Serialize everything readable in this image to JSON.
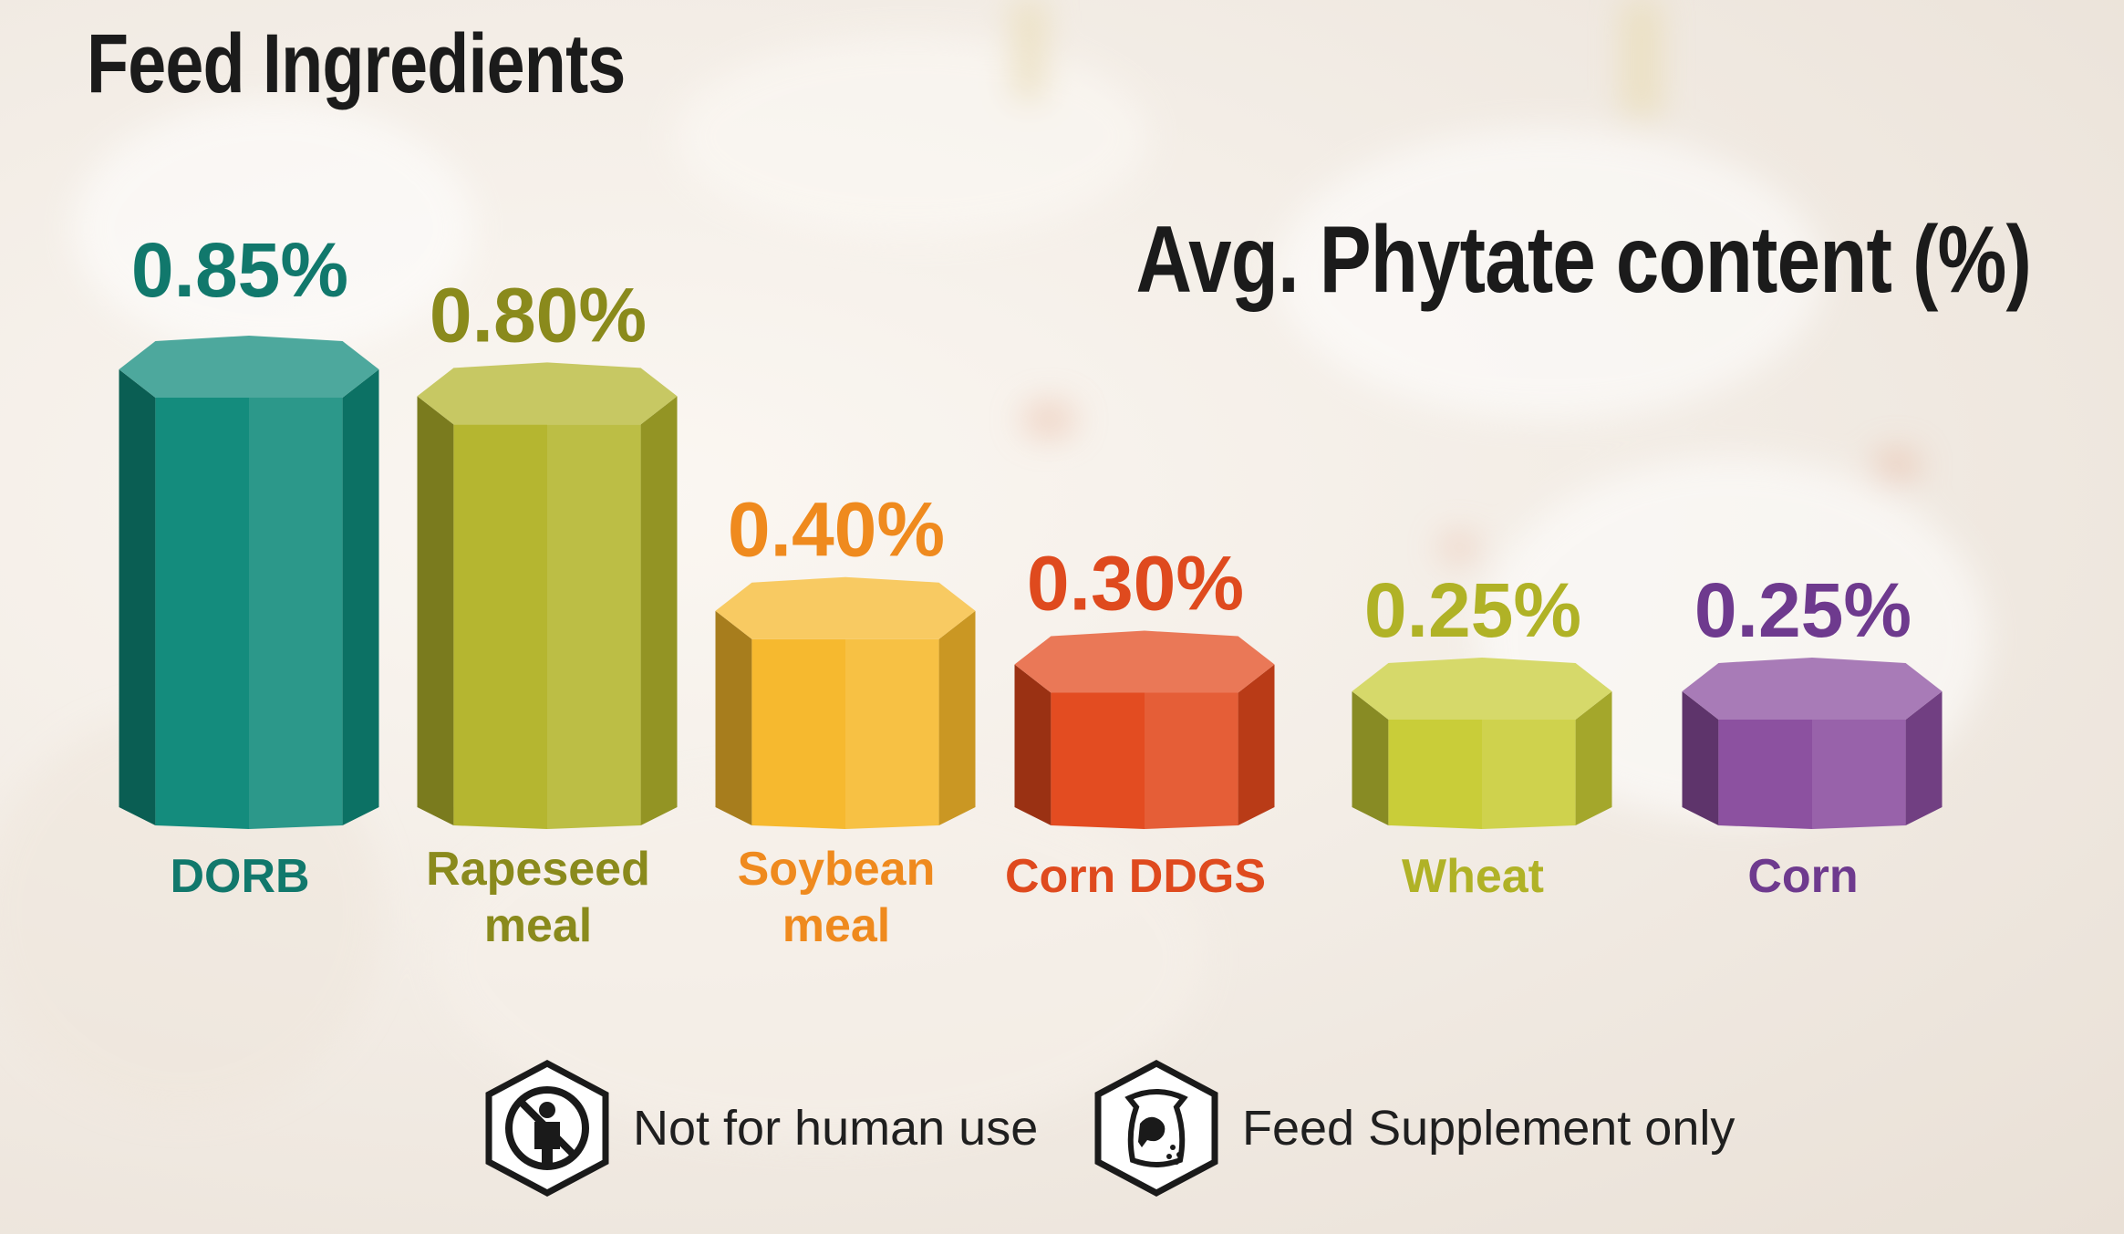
{
  "header": {
    "title": "Feed Ingredients",
    "subtitle": "Avg. Phytate content (%)"
  },
  "chart_data": {
    "type": "bar",
    "title": "Feed Ingredients",
    "ylabel": "Avg. Phytate content (%)",
    "ylim": [
      0,
      0.85
    ],
    "categories": [
      "DORB",
      "Rapeseed meal",
      "Soybean meal",
      "Corn DDGS",
      "Wheat",
      "Corn"
    ],
    "category_lines": [
      [
        "DORB"
      ],
      [
        "Rapeseed",
        "meal"
      ],
      [
        "Soybean",
        "meal"
      ],
      [
        "Corn DDGS"
      ],
      [
        "Wheat"
      ],
      [
        "Corn"
      ]
    ],
    "values": [
      0.85,
      0.8,
      0.4,
      0.3,
      0.25,
      0.25
    ],
    "value_labels": [
      "0.85%",
      "0.80%",
      "0.40%",
      "0.30%",
      "0.25%",
      "0.25%"
    ],
    "colors": [
      "#0f8a7a",
      "#b3b52c",
      "#f6b82b",
      "#e2481c",
      "#c8cc35",
      "#8a4d9e"
    ],
    "label_colors": [
      "#11786c",
      "#8a8a1c",
      "#ef8a1e",
      "#df4a1e",
      "#b0b226",
      "#6e3a8e"
    ],
    "grid": false,
    "legend": "none"
  },
  "legend": {
    "items": [
      {
        "icon": "no-human-icon",
        "label": "Not for human use"
      },
      {
        "icon": "feed-bag-icon",
        "label": "Feed Supplement only"
      }
    ]
  }
}
